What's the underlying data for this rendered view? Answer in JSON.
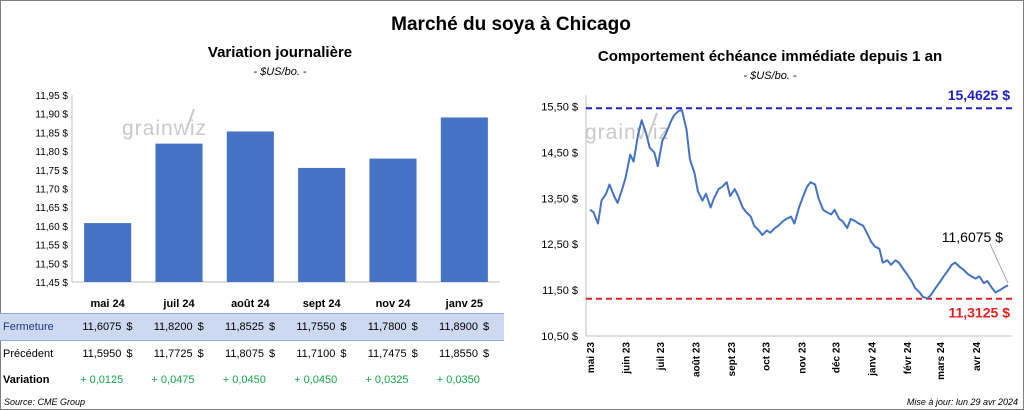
{
  "title": "Marché du soya à Chicago",
  "left_panel": {
    "title": "Variation journalière",
    "subtitle": "- $US/bo. -"
  },
  "right_panel": {
    "title": "Comportement échéance immédiate depuis 1 an",
    "subtitle": "- $US/bo. -"
  },
  "watermark": "grainwiz",
  "chart_data": [
    {
      "type": "bar",
      "categories": [
        "mai 24",
        "juil 24",
        "août 24",
        "sept 24",
        "nov 24",
        "janv 25"
      ],
      "values": [
        11.6075,
        11.82,
        11.8525,
        11.755,
        11.78,
        11.89
      ],
      "ylim": [
        11.45,
        11.95
      ],
      "yticks": [
        "11,45 $",
        "11,50 $",
        "11,55 $",
        "11,60 $",
        "11,65 $",
        "11,70 $",
        "11,75 $",
        "11,80 $",
        "11,85 $",
        "11,90 $",
        "11,95 $"
      ],
      "color": "#4472c4"
    },
    {
      "type": "line",
      "ylim": [
        10.5,
        15.75
      ],
      "yticks": [
        "10,50 $",
        "11,50 $",
        "12,50 $",
        "13,50 $",
        "14,50 $",
        "15,50 $"
      ],
      "xticks": [
        "mai 23",
        "juin 23",
        "juil 23",
        "août 23",
        "sept 23",
        "oct 23",
        "nov 23",
        "déc 23",
        "janv 24",
        "févr 24",
        "mars 24",
        "avr 24"
      ],
      "x_start": "2023-05-01",
      "x_end": "2024-04-29",
      "series": [
        {
          "color": "#4472c4",
          "points": [
            [
              "2023-05-01",
              13.25
            ],
            [
              "2023-05-04",
              13.2
            ],
            [
              "2023-05-08",
              12.95
            ],
            [
              "2023-05-11",
              13.45
            ],
            [
              "2023-05-15",
              13.6
            ],
            [
              "2023-05-18",
              13.8
            ],
            [
              "2023-05-22",
              13.55
            ],
            [
              "2023-05-25",
              13.4
            ],
            [
              "2023-05-29",
              13.7
            ],
            [
              "2023-06-01",
              13.95
            ],
            [
              "2023-06-05",
              14.45
            ],
            [
              "2023-06-08",
              14.3
            ],
            [
              "2023-06-12",
              14.9
            ],
            [
              "2023-06-15",
              15.2
            ],
            [
              "2023-06-19",
              14.9
            ],
            [
              "2023-06-22",
              14.6
            ],
            [
              "2023-06-26",
              14.5
            ],
            [
              "2023-06-29",
              14.2
            ],
            [
              "2023-07-03",
              14.75
            ],
            [
              "2023-07-06",
              14.9
            ],
            [
              "2023-07-10",
              15.15
            ],
            [
              "2023-07-13",
              15.3
            ],
            [
              "2023-07-17",
              15.4
            ],
            [
              "2023-07-20",
              15.42
            ],
            [
              "2023-07-24",
              15.0
            ],
            [
              "2023-07-27",
              14.35
            ],
            [
              "2023-07-31",
              14.05
            ],
            [
              "2023-08-03",
              13.65
            ],
            [
              "2023-08-07",
              13.45
            ],
            [
              "2023-08-10",
              13.6
            ],
            [
              "2023-08-14",
              13.3
            ],
            [
              "2023-08-17",
              13.5
            ],
            [
              "2023-08-21",
              13.7
            ],
            [
              "2023-08-24",
              13.75
            ],
            [
              "2023-08-28",
              13.85
            ],
            [
              "2023-08-31",
              13.55
            ],
            [
              "2023-09-04",
              13.7
            ],
            [
              "2023-09-07",
              13.55
            ],
            [
              "2023-09-11",
              13.3
            ],
            [
              "2023-09-14",
              13.2
            ],
            [
              "2023-09-18",
              13.1
            ],
            [
              "2023-09-21",
              12.9
            ],
            [
              "2023-09-25",
              12.8
            ],
            [
              "2023-09-28",
              12.7
            ],
            [
              "2023-10-02",
              12.8
            ],
            [
              "2023-10-05",
              12.75
            ],
            [
              "2023-10-09",
              12.85
            ],
            [
              "2023-10-12",
              12.9
            ],
            [
              "2023-10-16",
              13.0
            ],
            [
              "2023-10-19",
              13.05
            ],
            [
              "2023-10-23",
              13.1
            ],
            [
              "2023-10-26",
              12.95
            ],
            [
              "2023-10-30",
              13.3
            ],
            [
              "2023-11-02",
              13.5
            ],
            [
              "2023-11-06",
              13.75
            ],
            [
              "2023-11-09",
              13.85
            ],
            [
              "2023-11-13",
              13.8
            ],
            [
              "2023-11-16",
              13.5
            ],
            [
              "2023-11-20",
              13.25
            ],
            [
              "2023-11-23",
              13.2
            ],
            [
              "2023-11-27",
              13.15
            ],
            [
              "2023-11-30",
              13.25
            ],
            [
              "2023-12-04",
              13.05
            ],
            [
              "2023-12-07",
              13.0
            ],
            [
              "2023-12-11",
              12.85
            ],
            [
              "2023-12-14",
              13.05
            ],
            [
              "2023-12-18",
              13.0
            ],
            [
              "2023-12-21",
              12.95
            ],
            [
              "2023-12-25",
              12.9
            ],
            [
              "2023-12-28",
              12.75
            ],
            [
              "2024-01-01",
              12.55
            ],
            [
              "2024-01-04",
              12.45
            ],
            [
              "2024-01-08",
              12.4
            ],
            [
              "2024-01-11",
              12.1
            ],
            [
              "2024-01-15",
              12.15
            ],
            [
              "2024-01-18",
              12.05
            ],
            [
              "2024-01-22",
              12.15
            ],
            [
              "2024-01-25",
              12.1
            ],
            [
              "2024-01-29",
              11.95
            ],
            [
              "2024-02-01",
              11.85
            ],
            [
              "2024-02-05",
              11.7
            ],
            [
              "2024-02-08",
              11.55
            ],
            [
              "2024-02-12",
              11.45
            ],
            [
              "2024-02-15",
              11.35
            ],
            [
              "2024-02-19",
              11.32
            ],
            [
              "2024-02-22",
              11.4
            ],
            [
              "2024-02-26",
              11.55
            ],
            [
              "2024-02-29",
              11.65
            ],
            [
              "2024-03-04",
              11.8
            ],
            [
              "2024-03-07",
              11.9
            ],
            [
              "2024-03-11",
              12.05
            ],
            [
              "2024-03-14",
              12.1
            ],
            [
              "2024-03-18",
              12.0
            ],
            [
              "2024-03-21",
              11.95
            ],
            [
              "2024-03-25",
              11.85
            ],
            [
              "2024-03-28",
              11.8
            ],
            [
              "2024-04-01",
              11.75
            ],
            [
              "2024-04-04",
              11.8
            ],
            [
              "2024-04-08",
              11.65
            ],
            [
              "2024-04-11",
              11.7
            ],
            [
              "2024-04-15",
              11.55
            ],
            [
              "2024-04-18",
              11.45
            ],
            [
              "2024-04-22",
              11.5
            ],
            [
              "2024-04-25",
              11.55
            ],
            [
              "2024-04-29",
              11.6075
            ]
          ]
        }
      ],
      "reference_lines": [
        {
          "value": 15.4625,
          "label": "15,4625 $",
          "color": "#2020c0"
        },
        {
          "value": 11.3125,
          "label": "11,3125 $",
          "color": "#e02020"
        }
      ],
      "annotation": {
        "label": "11,6075 $",
        "value": 11.6075,
        "date": "2024-04-29"
      }
    }
  ],
  "table": {
    "rows": [
      {
        "label": "Fermeture",
        "values": [
          "11,6075",
          "11,8200",
          "11,8525",
          "11,7550",
          "11,7800",
          "11,8900"
        ],
        "currency": "$"
      },
      {
        "label": "Précédent",
        "values": [
          "11,5950",
          "11,7725",
          "11,8075",
          "11,7100",
          "11,7475",
          "11,8550"
        ],
        "currency": "$"
      },
      {
        "label": "Variation",
        "values": [
          "+ 0,0125",
          "+ 0,0475",
          "+ 0,0450",
          "+ 0,0450",
          "+ 0,0325",
          "+ 0,0350"
        ],
        "color": "#16a34a"
      }
    ]
  },
  "footer": {
    "source": "Source: CME Group",
    "update": "Mise à jour: lun 29 avr 2024"
  }
}
